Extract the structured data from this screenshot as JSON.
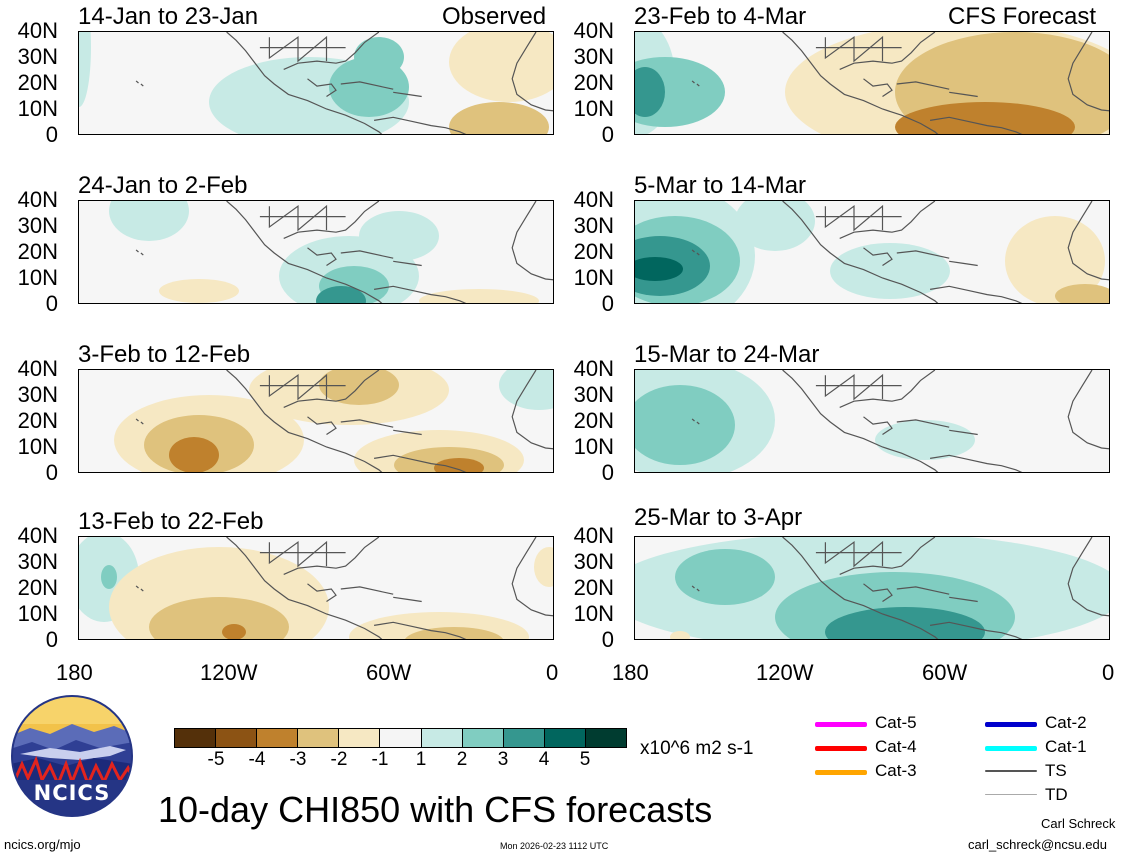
{
  "header": {
    "observed_label": "Observed",
    "forecast_label": "CFS Forecast"
  },
  "chart_data": [
    {
      "type": "heatmap",
      "title": "14-Jan to 23-Jan",
      "column": "Observed",
      "xlim": [
        -180,
        0
      ],
      "ylim": [
        0,
        40
      ]
    },
    {
      "type": "heatmap",
      "title": "24-Jan to 2-Feb",
      "column": "Observed",
      "xlim": [
        -180,
        0
      ],
      "ylim": [
        0,
        40
      ]
    },
    {
      "type": "heatmap",
      "title": "3-Feb to 12-Feb",
      "column": "Observed",
      "xlim": [
        -180,
        0
      ],
      "ylim": [
        0,
        40
      ]
    },
    {
      "type": "heatmap",
      "title": "13-Feb to 22-Feb",
      "column": "Observed",
      "xlim": [
        -180,
        0
      ],
      "ylim": [
        0,
        40
      ]
    },
    {
      "type": "heatmap",
      "title": "23-Feb to 4-Mar",
      "column": "CFS Forecast",
      "xlim": [
        -180,
        0
      ],
      "ylim": [
        0,
        40
      ]
    },
    {
      "type": "heatmap",
      "title": "5-Mar to 14-Mar",
      "column": "CFS Forecast",
      "xlim": [
        -180,
        0
      ],
      "ylim": [
        0,
        40
      ]
    },
    {
      "type": "heatmap",
      "title": "15-Mar to 24-Mar",
      "column": "CFS Forecast",
      "xlim": [
        -180,
        0
      ],
      "ylim": [
        0,
        40
      ]
    },
    {
      "type": "heatmap",
      "title": "25-Mar to 3-Apr",
      "column": "CFS Forecast",
      "xlim": [
        -180,
        0
      ],
      "ylim": [
        0,
        40
      ]
    }
  ],
  "axes": {
    "y_ticks": [
      "40N",
      "30N",
      "20N",
      "10N",
      "0"
    ],
    "x_ticks": [
      "180",
      "120W",
      "60W",
      "0"
    ]
  },
  "colorbar": {
    "labels": [
      "-5",
      "-4",
      "-3",
      "-2",
      "-1",
      "1",
      "2",
      "3",
      "4",
      "5"
    ],
    "colors": [
      "#54300a",
      "#8c5314",
      "#bf812d",
      "#dfc27d",
      "#f6e8c3",
      "#f5f5f5",
      "#c7eae5",
      "#80cdc1",
      "#35978f",
      "#01665e",
      "#003c30"
    ],
    "units": "x10^6 m2 s-1"
  },
  "legend": [
    {
      "label": "Cat-5",
      "color": "#ff00ff"
    },
    {
      "label": "Cat-4",
      "color": "#ff0000"
    },
    {
      "label": "Cat-3",
      "color": "#ffa500"
    },
    {
      "label": "Cat-2",
      "color": "#0000cc"
    },
    {
      "label": "Cat-1",
      "color": "#00ffff"
    },
    {
      "label": "TS",
      "color": "#555555"
    },
    {
      "label": "TD",
      "color": "#aaaaaa"
    }
  ],
  "footer": {
    "title": "10-day CHI850 with CFS forecasts",
    "url": "ncics.org/mjo",
    "timestamp": "Mon 2026-02-23 1112 UTC",
    "author": "Carl Schreck",
    "email": "carl_schreck@ncsu.edu",
    "logo_text": "NCICS"
  }
}
